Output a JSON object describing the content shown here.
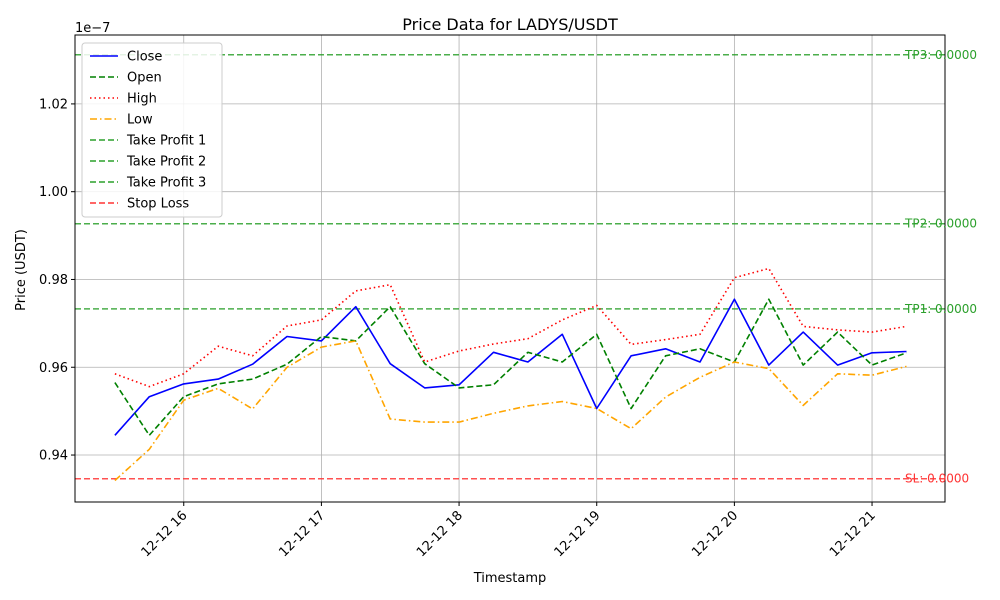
{
  "chart_data": {
    "type": "line",
    "title": "Price Data for LADYS/USDT",
    "xlabel": "Timestamp",
    "ylabel": "Price (USDT)",
    "y_multiplier_label": "1e−7",
    "x": [
      15.5,
      15.75,
      16.0,
      16.25,
      16.5,
      16.75,
      17.0,
      17.25,
      17.5,
      17.75,
      18.0,
      18.25,
      18.5,
      18.75,
      19.0,
      19.25,
      19.5,
      19.75,
      20.0,
      20.25,
      20.5,
      20.75,
      21.0,
      21.25
    ],
    "x_unit": "hour of 2023-12-12",
    "xlim": [
      15.21,
      21.53
    ],
    "ylim": [
      0.9293,
      1.0357
    ],
    "y_scale_exponent": -7,
    "x_ticks": [
      {
        "value": 16,
        "label": "12-12 16"
      },
      {
        "value": 17,
        "label": "12-12 17"
      },
      {
        "value": 18,
        "label": "12-12 18"
      },
      {
        "value": 19,
        "label": "12-12 19"
      },
      {
        "value": 20,
        "label": "12-12 20"
      },
      {
        "value": 21,
        "label": "12-12 21"
      }
    ],
    "y_ticks": [
      {
        "value": 0.94,
        "label": "0.94"
      },
      {
        "value": 0.96,
        "label": "0.96"
      },
      {
        "value": 0.98,
        "label": "0.98"
      },
      {
        "value": 1.0,
        "label": "1.00"
      },
      {
        "value": 1.02,
        "label": "1.02"
      }
    ],
    "grid": true,
    "legend_position": "upper-left",
    "series": [
      {
        "name": "Close",
        "color": "#0000ff",
        "dash": "solid",
        "values": [
          0.9445,
          0.9533,
          0.9562,
          0.9573,
          0.9607,
          0.967,
          0.966,
          0.9738,
          0.9608,
          0.9553,
          0.956,
          0.9634,
          0.9612,
          0.9675,
          0.9506,
          0.9626,
          0.9642,
          0.9612,
          0.9755,
          0.9605,
          0.968,
          0.9605,
          0.9633,
          0.9636
        ]
      },
      {
        "name": "Open",
        "color": "#008000",
        "dash": "dashed",
        "values": [
          0.9565,
          0.9445,
          0.9533,
          0.9562,
          0.9573,
          0.9607,
          0.967,
          0.966,
          0.9738,
          0.9608,
          0.9553,
          0.956,
          0.9634,
          0.9612,
          0.9675,
          0.9506,
          0.9626,
          0.9642,
          0.9612,
          0.9755,
          0.9605,
          0.968,
          0.9605,
          0.9633
        ]
      },
      {
        "name": "High",
        "color": "#ff0000",
        "dash": "dotted",
        "values": [
          0.9585,
          0.9556,
          0.9585,
          0.9648,
          0.9626,
          0.9694,
          0.9708,
          0.9774,
          0.9788,
          0.9612,
          0.9637,
          0.9653,
          0.9665,
          0.9708,
          0.9741,
          0.9652,
          0.9663,
          0.9675,
          0.9804,
          0.9825,
          0.9693,
          0.9685,
          0.968,
          0.9693
        ]
      },
      {
        "name": "Low",
        "color": "#ffa500",
        "dash": "dashdot",
        "values": [
          0.9342,
          0.9413,
          0.9525,
          0.9552,
          0.9505,
          0.96,
          0.9646,
          0.966,
          0.9482,
          0.9475,
          0.9475,
          0.9495,
          0.9512,
          0.9522,
          0.9506,
          0.946,
          0.9532,
          0.9577,
          0.9612,
          0.9597,
          0.9513,
          0.9585,
          0.9582,
          0.9602
        ]
      }
    ],
    "levels": [
      {
        "name": "Take Profit 1",
        "label": "TP1: 0.0000",
        "value": 0.9733,
        "color": "#2ca02c"
      },
      {
        "name": "Take Profit 2",
        "label": "TP2: 0.0000",
        "value": 0.9927,
        "color": "#2ca02c"
      },
      {
        "name": "Take Profit 3",
        "label": "TP3: 0.0000",
        "value": 1.0312,
        "color": "#2ca02c"
      },
      {
        "name": "Stop Loss",
        "label": "SL: 0.0000",
        "value": 0.9346,
        "color": "#ff3333"
      }
    ]
  }
}
